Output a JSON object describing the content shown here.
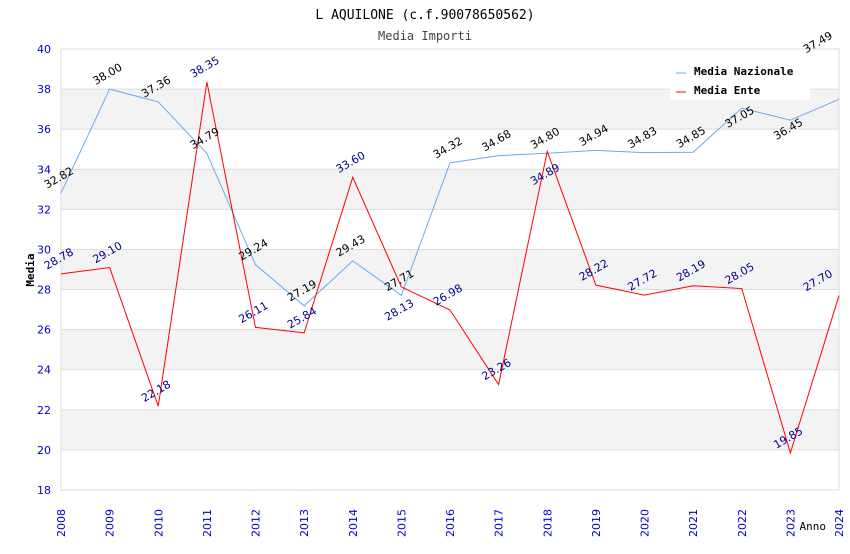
{
  "chart_data": {
    "type": "line",
    "title": "L AQUILONE (c.f.90078650562)",
    "subtitle": "Media Importi",
    "xlabel": "Anno",
    "ylabel": "Media",
    "ylim": [
      18,
      40
    ],
    "yticks": [
      "18",
      "20",
      "22",
      "24",
      "26",
      "28",
      "30",
      "32",
      "34",
      "36",
      "38",
      "40"
    ],
    "x": [
      "2008",
      "2009",
      "2010",
      "2011",
      "2012",
      "2013",
      "2014",
      "2015",
      "2016",
      "2017",
      "2018",
      "2019",
      "2020",
      "2021",
      "2022",
      "2023",
      "2024"
    ],
    "legend_position": "top-right",
    "series": [
      {
        "name": "Media Nazionale",
        "color": "#6aaaf0",
        "label_color": "#000000",
        "values": [
          32.82,
          38.0,
          37.36,
          34.79,
          29.24,
          27.19,
          29.43,
          27.71,
          34.32,
          34.68,
          34.8,
          34.94,
          34.83,
          34.85,
          37.05,
          36.45,
          37.49
        ],
        "labels": [
          "32.82",
          "38.00",
          "37.36",
          "34.79",
          "29.24",
          "27.19",
          "29.43",
          "27.71",
          "34.32",
          "34.68",
          "34.80",
          "34.94",
          "34.83",
          "34.85",
          "37.05",
          "36.45",
          "37.49"
        ]
      },
      {
        "name": "Media Ente",
        "color": "#ff0000",
        "label_color": "#00008b",
        "values": [
          28.78,
          29.1,
          22.18,
          38.35,
          26.11,
          25.84,
          33.6,
          28.13,
          26.98,
          23.26,
          34.89,
          28.22,
          27.72,
          28.19,
          28.05,
          19.85,
          27.7
        ],
        "labels": [
          "28.78",
          "29.10",
          "22.18",
          "38.35",
          "26.11",
          "25.84",
          "33.60",
          "28.13",
          "26.98",
          "23.26",
          "34.89",
          "28.22",
          "27.72",
          "28.19",
          "28.05",
          "19.85",
          "27.70"
        ]
      }
    ]
  }
}
